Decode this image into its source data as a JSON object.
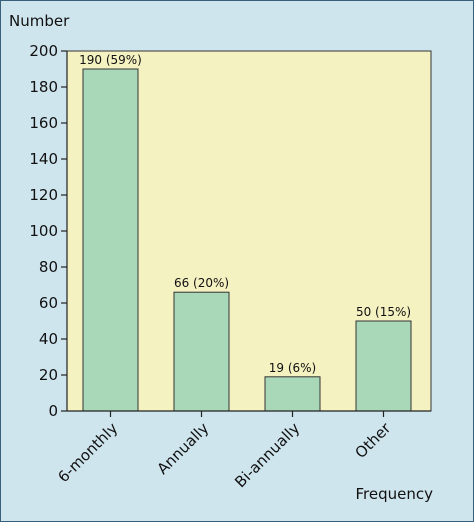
{
  "chart_data": {
    "type": "bar",
    "title": "",
    "ylabel": "Number",
    "xlabel": "Frequency",
    "ylim": [
      0,
      200
    ],
    "yticks": [
      0,
      20,
      40,
      60,
      80,
      100,
      120,
      140,
      160,
      180,
      200
    ],
    "categories": [
      "6-monthly",
      "Annually",
      "Bi-annually",
      "Other"
    ],
    "values": [
      190,
      66,
      19,
      50
    ],
    "data_labels": [
      "190 (59%)",
      "66 (20%)",
      "19 (6%)",
      "50 (15%)"
    ],
    "grid": false,
    "colors": {
      "bar_fill": "#a8d8b8",
      "bar_stroke": "#333333",
      "plot_background": "#f5f2c2",
      "figure_background": "#cfe5ee"
    }
  }
}
